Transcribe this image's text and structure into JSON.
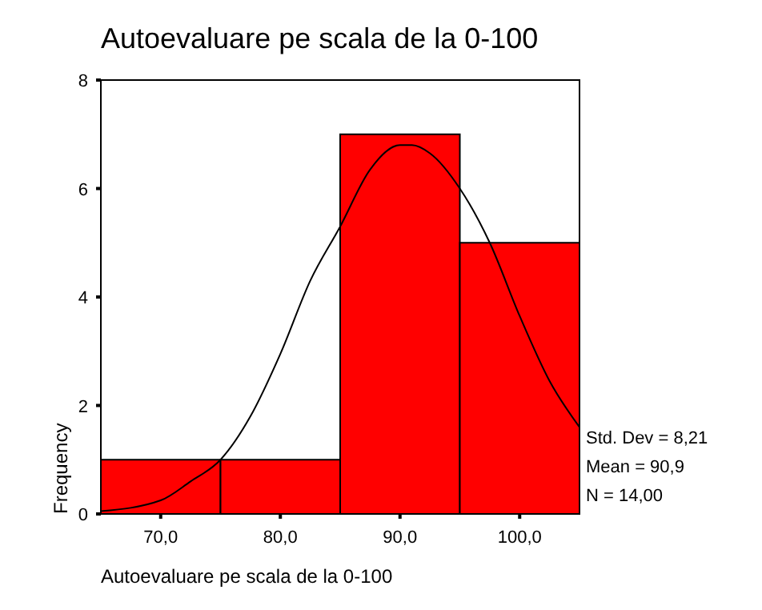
{
  "chart_data": {
    "type": "histogram",
    "title": "Autoevaluare pe scala de la 0-100",
    "xlabel": "Autoevaluare pe scala de la 0-100",
    "ylabel": "Frequency",
    "bins": [
      65,
      75,
      85,
      95,
      105
    ],
    "values": [
      1,
      1,
      7,
      5
    ],
    "color": "#ff0000",
    "series": [
      {
        "type": "line",
        "color": "#000000",
        "x": [
          65,
          70,
          72.5,
          75,
          77.5,
          80,
          82.5,
          85,
          87.5,
          90,
          91,
          92.5,
          95,
          97.5,
          100,
          102.5,
          105
        ],
        "values": [
          0.05,
          0.25,
          0.6,
          1.0,
          1.8,
          2.95,
          4.3,
          5.3,
          6.35,
          6.8,
          6.8,
          6.65,
          6.0,
          5.0,
          3.65,
          2.45,
          1.6
        ]
      }
    ],
    "xlim": [
      65,
      105
    ],
    "xticks": [
      {
        "value": 70,
        "label": "70,0"
      },
      {
        "value": 80,
        "label": "80,0"
      },
      {
        "value": 90,
        "label": "90,0"
      },
      {
        "value": 100,
        "label": "100,0"
      }
    ],
    "ylim": [
      0,
      8
    ],
    "yticks": [
      0,
      2,
      4,
      6,
      8
    ],
    "grid": false,
    "annotations": [
      "Std. Dev = 8,21",
      "Mean = 90,9",
      "N = 14,00"
    ]
  }
}
